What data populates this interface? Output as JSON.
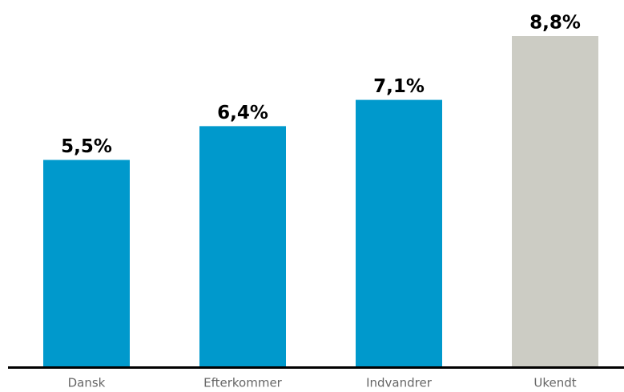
{
  "chart_data": {
    "type": "bar",
    "categories": [
      "Dansk",
      "Efterkommer",
      "Indvandrer",
      "Ukendt"
    ],
    "values": [
      5.5,
      6.4,
      7.1,
      8.8
    ],
    "value_labels": [
      "5,5%",
      "6,4%",
      "7,1%",
      "8,8%"
    ],
    "colors": [
      "#0099cc",
      "#0099cc",
      "#0099cc",
      "#ccccc4"
    ]
  }
}
